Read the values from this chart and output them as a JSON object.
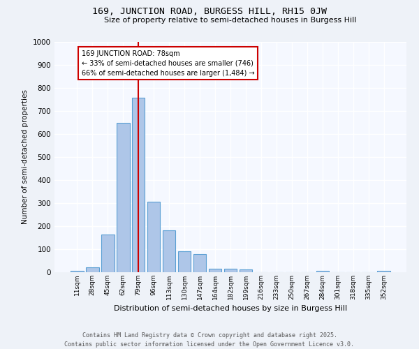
{
  "title1": "169, JUNCTION ROAD, BURGESS HILL, RH15 0JW",
  "title2": "Size of property relative to semi-detached houses in Burgess Hill",
  "xlabel": "Distribution of semi-detached houses by size in Burgess Hill",
  "ylabel": "Number of semi-detached properties",
  "categories": [
    "11sqm",
    "28sqm",
    "45sqm",
    "62sqm",
    "79sqm",
    "96sqm",
    "113sqm",
    "130sqm",
    "147sqm",
    "164sqm",
    "182sqm",
    "199sqm",
    "216sqm",
    "233sqm",
    "250sqm",
    "267sqm",
    "284sqm",
    "301sqm",
    "318sqm",
    "335sqm",
    "352sqm"
  ],
  "values": [
    5,
    22,
    163,
    647,
    757,
    305,
    182,
    91,
    78,
    15,
    14,
    12,
    0,
    0,
    0,
    0,
    5,
    0,
    0,
    0,
    5
  ],
  "bar_color": "#aec6e8",
  "bar_edge_color": "#5a9fd4",
  "vline_x": 4,
  "vline_color": "#cc0000",
  "annotation_title": "169 JUNCTION ROAD: 78sqm",
  "annotation_line1": "← 33% of semi-detached houses are smaller (746)",
  "annotation_line2": "66% of semi-detached houses are larger (1,484) →",
  "annotation_box_color": "#cc0000",
  "ylim": [
    0,
    1000
  ],
  "yticks": [
    0,
    100,
    200,
    300,
    400,
    500,
    600,
    700,
    800,
    900,
    1000
  ],
  "footer1": "Contains HM Land Registry data © Crown copyright and database right 2025.",
  "footer2": "Contains public sector information licensed under the Open Government Licence v3.0.",
  "bg_color": "#eef2f8",
  "plot_bg_color": "#f5f8ff"
}
